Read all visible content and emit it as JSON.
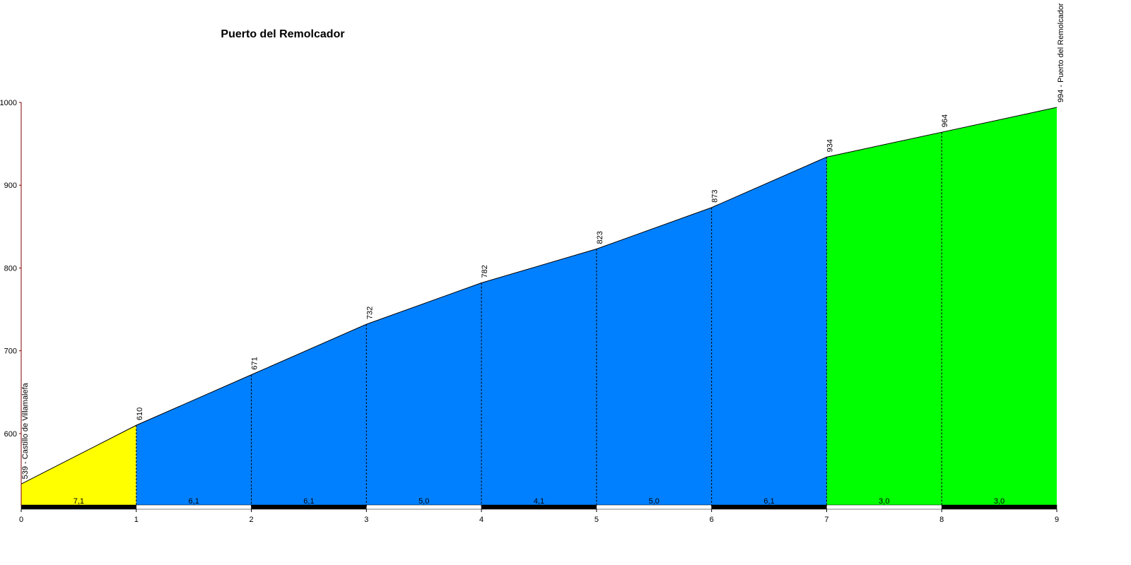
{
  "chart_data": {
    "type": "profile",
    "title": "Puerto del Remolcador",
    "x": [
      0,
      1,
      2,
      3,
      4,
      5,
      6,
      7,
      8,
      9
    ],
    "values": [
      539,
      610,
      671,
      732,
      782,
      823,
      873,
      934,
      964,
      994
    ],
    "segments": {
      "values": [
        7.1,
        6.1,
        6.1,
        5.0,
        4.1,
        5.0,
        6.1,
        3.0,
        3.0
      ],
      "value_labels": [
        "7,1",
        "6,1",
        "6,1",
        "5,0",
        "4,1",
        "5,0",
        "6,1",
        "3,0",
        "3,0"
      ],
      "colors": [
        "#ffff00",
        "#0080ff",
        "#0080ff",
        "#0080ff",
        "#0080ff",
        "#0080ff",
        "#0080ff",
        "#00ff00",
        "#00ff00"
      ]
    },
    "annotations": [
      {
        "text": "539 - Castillo de Villamalefa",
        "at": 0
      },
      {
        "text": "994 - Puerto del Remolcador",
        "at": 9
      }
    ],
    "xlim": [
      0,
      9
    ],
    "xticks": [
      0,
      1,
      2,
      3,
      4,
      5,
      6,
      7,
      8,
      9
    ],
    "ylim": [
      512,
      1000
    ],
    "yticks": [
      600,
      700,
      800,
      900,
      1000
    ]
  }
}
